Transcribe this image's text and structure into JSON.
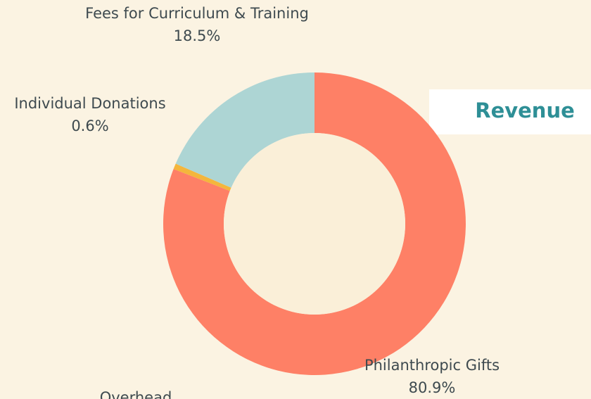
{
  "chart_data": {
    "type": "pie",
    "title": "Revenue",
    "categories": [
      "Philanthropic Gifts",
      "Individual Donations",
      "Fees for Curriculum & Training"
    ],
    "values": [
      80.9,
      0.6,
      18.5
    ],
    "value_labels": [
      "80.9%",
      "0.6%",
      "18.5%"
    ],
    "colors": [
      "#fe8066",
      "#f4b63c",
      "#add5d4"
    ],
    "donut": true
  },
  "other_labels": [
    "Overhead"
  ]
}
